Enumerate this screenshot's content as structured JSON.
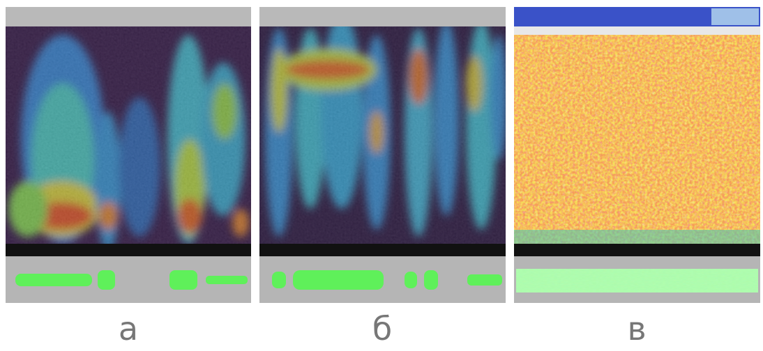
{
  "panels": [
    {
      "label": "а"
    },
    {
      "label": "б"
    },
    {
      "label": "в"
    }
  ]
}
